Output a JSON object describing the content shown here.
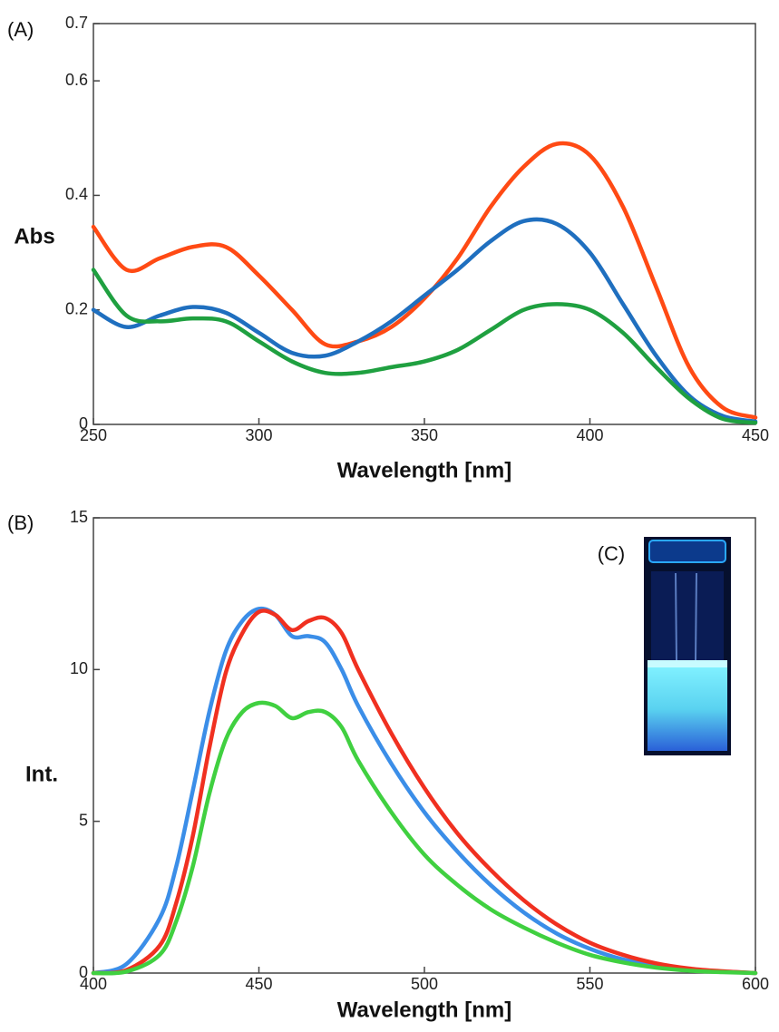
{
  "chart_data": [
    {
      "type": "line",
      "panel_label": "(A)",
      "xlabel": "Wavelength [nm]",
      "ylabel": "Abs",
      "x": [
        250,
        260,
        270,
        280,
        290,
        300,
        310,
        320,
        330,
        340,
        350,
        360,
        370,
        380,
        390,
        400,
        410,
        420,
        430,
        440,
        450
      ],
      "series": [
        {
          "color": "#ff4a14",
          "values": [
            0.345,
            0.27,
            0.29,
            0.31,
            0.31,
            0.26,
            0.2,
            0.14,
            0.145,
            0.17,
            0.22,
            0.29,
            0.38,
            0.45,
            0.49,
            0.47,
            0.38,
            0.24,
            0.1,
            0.03,
            0.012
          ]
        },
        {
          "color": "#1f6fbf",
          "values": [
            0.2,
            0.17,
            0.19,
            0.205,
            0.195,
            0.16,
            0.125,
            0.12,
            0.145,
            0.18,
            0.225,
            0.27,
            0.32,
            0.355,
            0.35,
            0.3,
            0.21,
            0.12,
            0.05,
            0.015,
            0.005
          ]
        },
        {
          "color": "#1fa040",
          "values": [
            0.27,
            0.19,
            0.18,
            0.185,
            0.18,
            0.145,
            0.11,
            0.09,
            0.09,
            0.1,
            0.11,
            0.13,
            0.165,
            0.2,
            0.21,
            0.2,
            0.16,
            0.1,
            0.045,
            0.01,
            0.003
          ]
        }
      ],
      "xlim": [
        250,
        450
      ],
      "xticks": [
        250,
        300,
        350,
        400,
        450
      ],
      "ylim": [
        0,
        0.7
      ],
      "yticks": [
        0,
        0.2,
        0.4,
        0.6,
        0.7
      ],
      "grid": false
    },
    {
      "type": "line",
      "panel_label": "(B)",
      "inset_label": "(C)",
      "xlabel": "Wavelength [nm]",
      "ylabel": "Int.",
      "x": [
        400,
        410,
        420,
        425,
        430,
        435,
        440,
        445,
        450,
        455,
        460,
        465,
        470,
        475,
        480,
        490,
        500,
        510,
        520,
        530,
        540,
        550,
        560,
        570,
        580,
        590,
        600
      ],
      "series": [
        {
          "color": "#3b8ee8",
          "values": [
            0,
            0.3,
            1.8,
            3.5,
            6.0,
            8.6,
            10.6,
            11.6,
            12.0,
            11.8,
            11.1,
            11.1,
            10.9,
            10.0,
            8.8,
            6.9,
            5.3,
            4.0,
            2.9,
            2.0,
            1.3,
            0.8,
            0.45,
            0.25,
            0.12,
            0.05,
            0
          ]
        },
        {
          "color": "#f03020",
          "values": [
            0,
            0.1,
            0.9,
            2.3,
            4.5,
            7.4,
            9.9,
            11.2,
            11.9,
            11.8,
            11.3,
            11.6,
            11.7,
            11.2,
            10.0,
            7.9,
            6.1,
            4.6,
            3.4,
            2.4,
            1.6,
            1.0,
            0.6,
            0.32,
            0.15,
            0.06,
            0
          ]
        },
        {
          "color": "#40d040",
          "values": [
            0,
            0.05,
            0.6,
            1.7,
            3.5,
            5.9,
            7.7,
            8.6,
            8.9,
            8.8,
            8.4,
            8.6,
            8.6,
            8.1,
            7.0,
            5.3,
            3.9,
            2.9,
            2.1,
            1.5,
            1.0,
            0.6,
            0.35,
            0.18,
            0.08,
            0.03,
            0
          ]
        }
      ],
      "xlim": [
        400,
        600
      ],
      "xticks": [
        400,
        450,
        500,
        550,
        600
      ],
      "ylim": [
        0,
        15
      ],
      "yticks": [
        0,
        5,
        10,
        15
      ],
      "grid": false
    }
  ]
}
